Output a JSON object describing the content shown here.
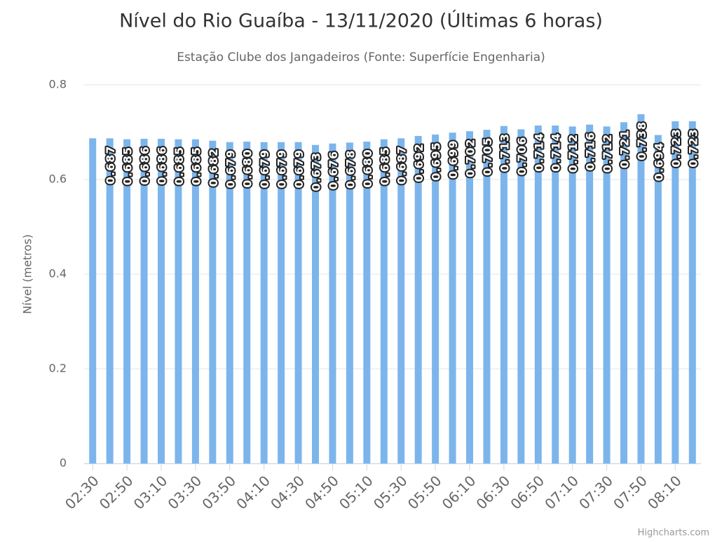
{
  "chart_data": {
    "type": "bar",
    "title": "Nível do Rio Guaíba - 13/11/2020 (Últimas 6 horas)",
    "subtitle": "Estação Clube dos Jangadeiros (Fonte: Superfície Engenharia)",
    "y_axis_label": "Nível (metros)",
    "credits": "Highcharts.com",
    "categories": [
      "02:30",
      null,
      "02:50",
      null,
      "03:10",
      null,
      "03:30",
      null,
      "03:50",
      null,
      "04:10",
      null,
      "04:30",
      null,
      "04:50",
      null,
      "05:10",
      null,
      "05:30",
      null,
      "05:50",
      null,
      "06:10",
      null,
      "06:30",
      null,
      "06:50",
      null,
      "07:10",
      null,
      "07:30",
      null,
      "07:50",
      null,
      "08:10",
      null
    ],
    "values": [
      0.687,
      0.687,
      0.685,
      0.686,
      0.686,
      0.685,
      0.685,
      0.682,
      0.679,
      0.68,
      0.679,
      0.679,
      0.679,
      0.673,
      0.676,
      0.678,
      0.68,
      0.685,
      0.687,
      0.692,
      0.695,
      0.699,
      0.702,
      0.705,
      0.713,
      0.706,
      0.714,
      0.714,
      0.712,
      0.716,
      0.712,
      0.721,
      0.738,
      0.694,
      0.723,
      0.723
    ],
    "value_labels": [
      null,
      "0.687",
      "0.685",
      "0.686",
      "0.686",
      "0.685",
      "0.685",
      "0.682",
      "0.679",
      "0.680",
      "0.679",
      "0.679",
      "0.679",
      "0.673",
      "0.676",
      "0.678",
      "0.680",
      "0.685",
      "0.687",
      "0.692",
      "0.695",
      "0.699",
      "0.702",
      "0.705",
      "0.713",
      "0.706",
      "0.714",
      "0.714",
      "0.712",
      "0.716",
      "0.712",
      "0.721",
      "0.738",
      "0.694",
      "0.723",
      "0.723"
    ],
    "color": "#7cb5ec",
    "ylim": [
      0,
      0.8
    ],
    "yticks": [
      0,
      0.2,
      0.4,
      0.6,
      0.8
    ],
    "grid": true
  }
}
